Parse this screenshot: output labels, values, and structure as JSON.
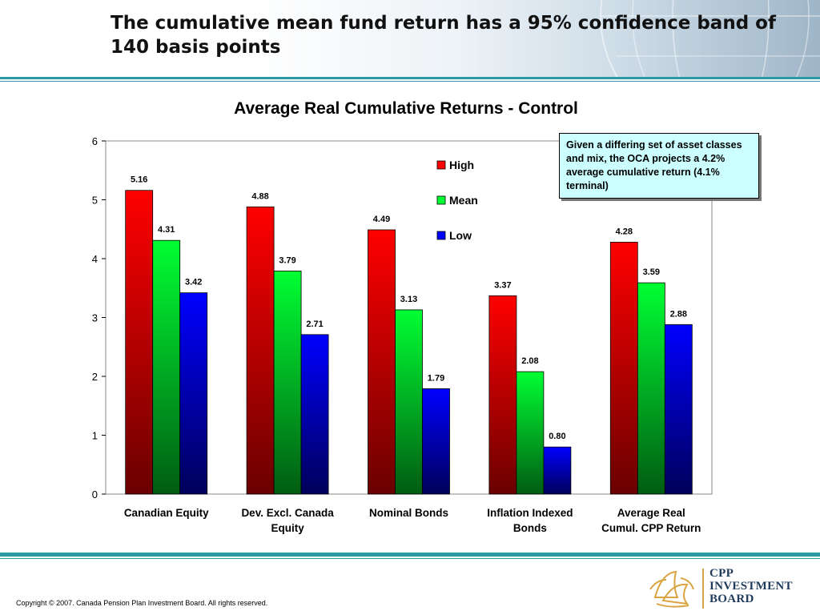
{
  "header": {
    "title": "The cumulative mean fund return has a 95% confidence band of 140 basis points"
  },
  "callout": {
    "text": "Given a differing set of asset classes and mix, the OCA projects a 4.2% average cumulative return (4.1% terminal)"
  },
  "footer": {
    "copyright": "Copyright © 2007. Canada Pension Plan Investment Board. All rights reserved.",
    "logo_lines": [
      "CPP",
      "INVESTMENT",
      "BOARD"
    ]
  },
  "colors": {
    "accent_rule": "#2a9aa3",
    "high": "#ff0000",
    "mean": "#00ff33",
    "low": "#0000ff"
  },
  "chart_data": {
    "type": "bar",
    "title": "Average Real Cumulative Returns - Control",
    "xlabel": "",
    "ylabel": "",
    "ylim": [
      0,
      6
    ],
    "yticks": [
      0,
      1,
      2,
      3,
      4,
      5,
      6
    ],
    "grid": false,
    "legend_position": "top-right",
    "categories": [
      [
        "Canadian Equity"
      ],
      [
        "Dev. Excl. Canada",
        "Equity"
      ],
      [
        "Nominal Bonds"
      ],
      [
        "Inflation Indexed",
        "Bonds"
      ],
      [
        "Average Real",
        "Cumul. CPP Return"
      ]
    ],
    "series": [
      {
        "name": "High",
        "color": "#ff0000",
        "values": [
          5.16,
          4.88,
          4.49,
          3.37,
          4.28
        ],
        "labels": [
          "5.16",
          "4.88",
          "4.49",
          "3.37",
          "4.28"
        ]
      },
      {
        "name": "Mean",
        "color": "#00ff33",
        "values": [
          4.31,
          3.79,
          3.13,
          2.08,
          3.59
        ],
        "labels": [
          "4.31",
          "3.79",
          "3.13",
          "2.08",
          "3.59"
        ]
      },
      {
        "name": "Low",
        "color": "#0000ff",
        "values": [
          3.42,
          2.71,
          1.79,
          0.8,
          2.88
        ],
        "labels": [
          "3.42",
          "2.71",
          "1.79",
          "0.80",
          "2.88"
        ]
      }
    ]
  }
}
